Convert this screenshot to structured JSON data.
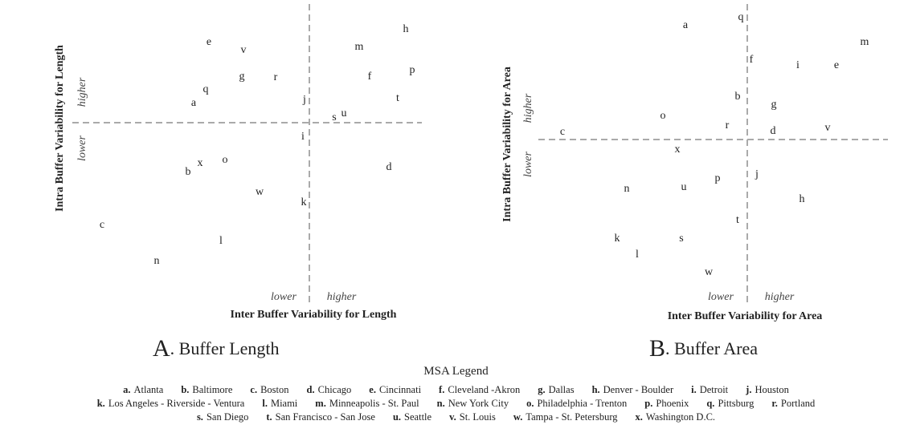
{
  "panels": [
    {
      "y_label": "Intra Buffer Variability for Length",
      "x_label": "Inter Buffer Variability for Length",
      "y_higher": "higher",
      "y_lower": "lower",
      "x_lower": "lower",
      "x_higher": "higher",
      "caption_letter": "A",
      "caption_text": ". Buffer Length",
      "points": [
        "e",
        "v",
        "h",
        "m",
        "g",
        "r",
        "f",
        "p",
        "q",
        "a",
        "j",
        "t",
        "s",
        "u",
        "i",
        "d",
        "b",
        "x",
        "o",
        "w",
        "k",
        "c",
        "l",
        "n"
      ]
    },
    {
      "y_label": "Intra Buffer Variability for Area",
      "x_label": "Inter Buffer Variability for Area",
      "y_higher": "higher",
      "y_lower": "lower",
      "x_lower": "lower",
      "x_higher": "higher",
      "caption_letter": "B",
      "caption_text": ". Buffer Area",
      "points": [
        "a",
        "q",
        "m",
        "f",
        "i",
        "e",
        "b",
        "g",
        "o",
        "r",
        "d",
        "v",
        "c",
        "x",
        "j",
        "p",
        "n",
        "u",
        "h",
        "t",
        "k",
        "s",
        "l",
        "w"
      ]
    }
  ],
  "legend": {
    "title": "MSA Legend",
    "entries": [
      {
        "key": "a.",
        "name": "Atlanta"
      },
      {
        "key": "b.",
        "name": "Baltimore"
      },
      {
        "key": "c.",
        "name": "Boston"
      },
      {
        "key": "d.",
        "name": "Chicago"
      },
      {
        "key": "e.",
        "name": "Cincinnati"
      },
      {
        "key": "f.",
        "name": "Cleveland -Akron"
      },
      {
        "key": "g.",
        "name": "Dallas"
      },
      {
        "key": "h.",
        "name": "Denver - Boulder"
      },
      {
        "key": "i.",
        "name": "Detroit"
      },
      {
        "key": "j.",
        "name": "Houston"
      },
      {
        "key": "k.",
        "name": "Los Angeles - Riverside - Ventura"
      },
      {
        "key": "l.",
        "name": "Miami"
      },
      {
        "key": "m.",
        "name": "Minneapolis - St. Paul"
      },
      {
        "key": "n.",
        "name": "New York City"
      },
      {
        "key": "o.",
        "name": "Philadelphia - Trenton"
      },
      {
        "key": "p.",
        "name": "Phoenix"
      },
      {
        "key": "q.",
        "name": "Pittsburg"
      },
      {
        "key": "r.",
        "name": "Portland"
      },
      {
        "key": "s.",
        "name": "San Diego"
      },
      {
        "key": "t.",
        "name": "San Francisco - San Jose"
      },
      {
        "key": "u.",
        "name": "Seattle"
      },
      {
        "key": "v.",
        "name": "St. Louis"
      },
      {
        "key": "w.",
        "name": "Tampa - St. Petersburg"
      },
      {
        "key": "x.",
        "name": "Washington D.C."
      }
    ]
  }
}
